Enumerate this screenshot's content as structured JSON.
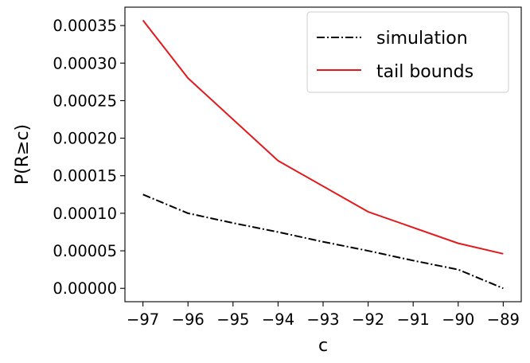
{
  "chart_data": {
    "type": "line",
    "xlabel": "c",
    "ylabel": "P(R≥c)",
    "xlim": [
      -97.4,
      -88.6
    ],
    "ylim": [
      -1.78e-05,
      0.0003745
    ],
    "x_ticks": [
      -97,
      -96,
      -95,
      -94,
      -93,
      -92,
      -91,
      -90,
      -89
    ],
    "x_tick_labels": [
      "−97",
      "−96",
      "−95",
      "−94",
      "−93",
      "−92",
      "−91",
      "−90",
      "−89"
    ],
    "y_ticks": [
      0,
      5e-05,
      0.0001,
      0.00015,
      0.0002,
      0.00025,
      0.0003,
      0.00035
    ],
    "y_tick_labels": [
      "0.00000",
      "0.00005",
      "0.00010",
      "0.00015",
      "0.00020",
      "0.00025",
      "0.00030",
      "0.00035"
    ],
    "grid": false,
    "legend_position": "top-right",
    "series": [
      {
        "name": "simulation",
        "color": "#000000",
        "linestyle": "dashdot",
        "x": [
          -97,
          -96,
          -95,
          -94,
          -93,
          -92,
          -91,
          -90,
          -89
        ],
        "y": [
          0.000125,
          0.0001,
          8.7e-05,
          7.5e-05,
          6.2e-05,
          5e-05,
          3.7e-05,
          2.5e-05,
          0.0
        ]
      },
      {
        "name": "tail bounds",
        "color": "#e31a1c",
        "linestyle": "solid",
        "x": [
          -97,
          -96,
          -94,
          -92,
          -90,
          -89
        ],
        "y": [
          0.000357,
          0.00028,
          0.00017,
          0.000102,
          6e-05,
          4.6e-05
        ]
      }
    ]
  }
}
